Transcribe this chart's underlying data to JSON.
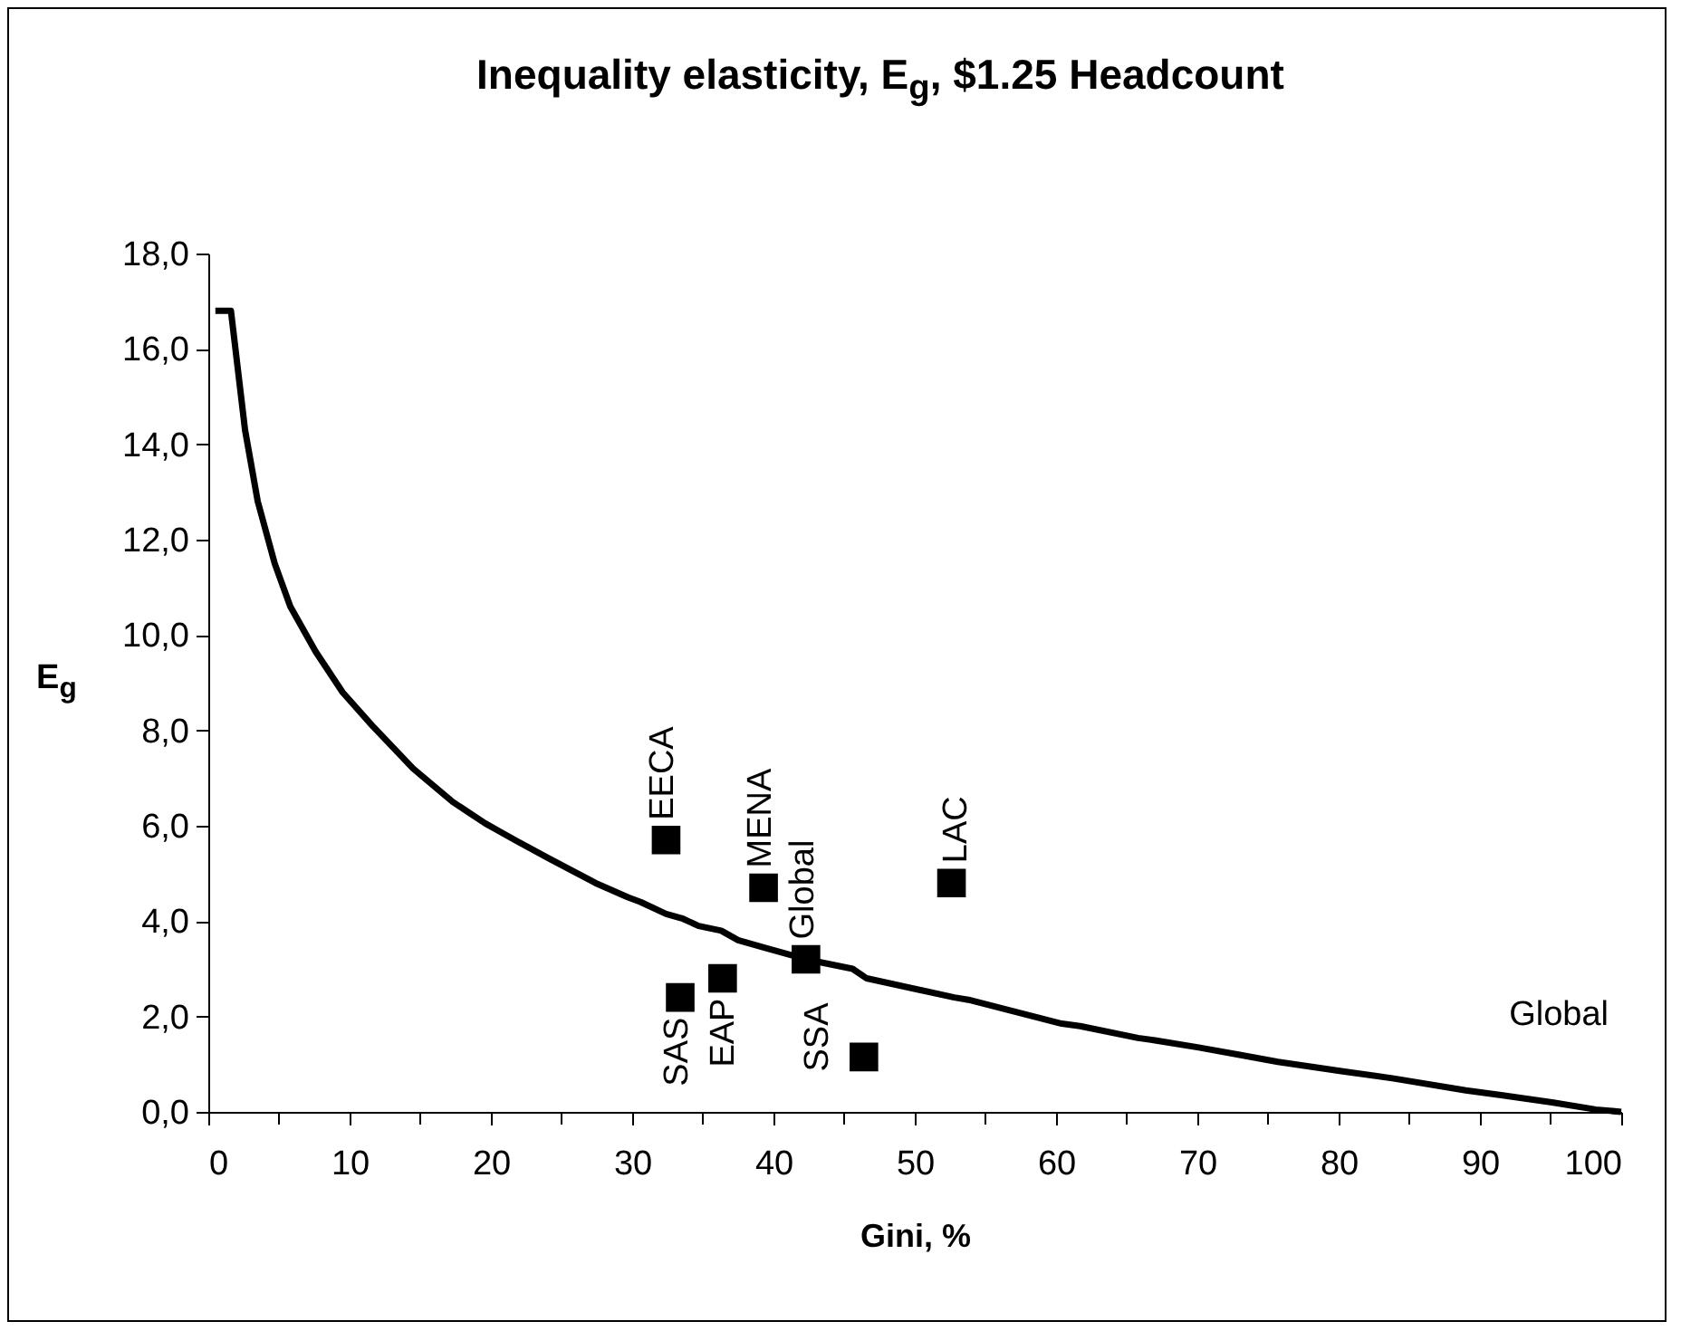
{
  "chart_data": {
    "type": "line",
    "title": "Inequality elasticity, E$_{g}$, $1.25 Headcount",
    "xlabel": "Gini, %",
    "ylabel": "E$_{g}$",
    "xlim": [
      0,
      100
    ],
    "ylim": [
      0,
      18
    ],
    "xticks": [
      0,
      {
        "value": 5,
        "label": null
      },
      10,
      {
        "value": 15,
        "label": null
      },
      20,
      {
        "value": 25,
        "label": null
      },
      30,
      {
        "value": 35,
        "label": null
      },
      40,
      {
        "value": 45,
        "label": null
      },
      50,
      {
        "value": 55,
        "label": null
      },
      60,
      {
        "value": 65,
        "label": null
      },
      70,
      {
        "value": 75,
        "label": null
      },
      80,
      {
        "value": 85,
        "label": null
      },
      90,
      {
        "value": 95,
        "label": null
      },
      100
    ],
    "yticks": [
      {
        "value": 0,
        "label": "0,0"
      },
      {
        "value": 2,
        "label": "2,0"
      },
      {
        "value": 4,
        "label": "4,0"
      },
      {
        "value": 6,
        "label": "6,0"
      },
      {
        "value": 8,
        "label": "8,0"
      },
      {
        "value": 10,
        "label": "10,0"
      },
      {
        "value": 12,
        "label": "12,0"
      },
      {
        "value": 14,
        "label": "14,0"
      },
      {
        "value": 16,
        "label": "16,0"
      },
      {
        "value": 18,
        "label": "18,0"
      }
    ],
    "grid": false,
    "series": [
      {
        "name": "Global",
        "color": "#000000",
        "line_style": "solid",
        "marker": "none",
        "x": [
          0.5,
          1.6,
          2.6,
          3.5,
          4.7,
          5.8,
          7.6,
          9.5,
          11.6,
          14.5,
          17.3,
          19.6,
          20.5,
          21.7,
          24.2,
          27.4,
          29.7,
          30.6,
          32.4,
          33.6,
          34.7,
          36.3,
          37.5,
          39.3,
          42.3,
          45.6,
          46.6,
          52.8,
          53.8,
          60.4,
          61.7,
          65.8,
          67.0,
          70.1,
          72.9,
          75.7,
          80.3,
          83.9,
          89.0,
          91.5,
          95.1,
          98.2,
          100.0
        ],
        "values": [
          16.8,
          16.8,
          14.3,
          12.8,
          11.5,
          10.6,
          9.65,
          8.8,
          8.1,
          7.2,
          6.5,
          6.05,
          5.9,
          5.7,
          5.3,
          4.8,
          4.5,
          4.4,
          4.15,
          4.05,
          3.9,
          3.8,
          3.6,
          3.45,
          3.2,
          3.0,
          2.8,
          2.4,
          2.35,
          1.85,
          1.8,
          1.55,
          1.5,
          1.35,
          1.2,
          1.05,
          0.85,
          0.7,
          0.45,
          0.35,
          0.2,
          0.05,
          0.0
        ]
      },
      {
        "type": "scatter",
        "color": "#000000",
        "marker": "square",
        "x": [
          32.4,
          39.3,
          42.3,
          52.6,
          33.4,
          36.4,
          46.4
        ],
        "values": [
          5.7,
          4.7,
          3.2,
          4.8,
          2.4,
          2.8,
          1.15
        ]
      }
    ],
    "annotations": [
      {
        "text": "EECA",
        "x": 32.4,
        "y": 5.7
      },
      {
        "text": "MENA",
        "x": 39.3,
        "y": 4.7
      },
      {
        "text": "Global",
        "x": 42.3,
        "y": 3.2
      },
      {
        "text": "LAC",
        "x": 52.6,
        "y": 4.8
      },
      {
        "text": "SAS",
        "x": 33.4,
        "y": 2.4
      },
      {
        "text": "EAP",
        "x": 36.4,
        "y": 2.8
      },
      {
        "text": "SSA",
        "x": 46.4,
        "y": 1.15
      }
    ]
  }
}
